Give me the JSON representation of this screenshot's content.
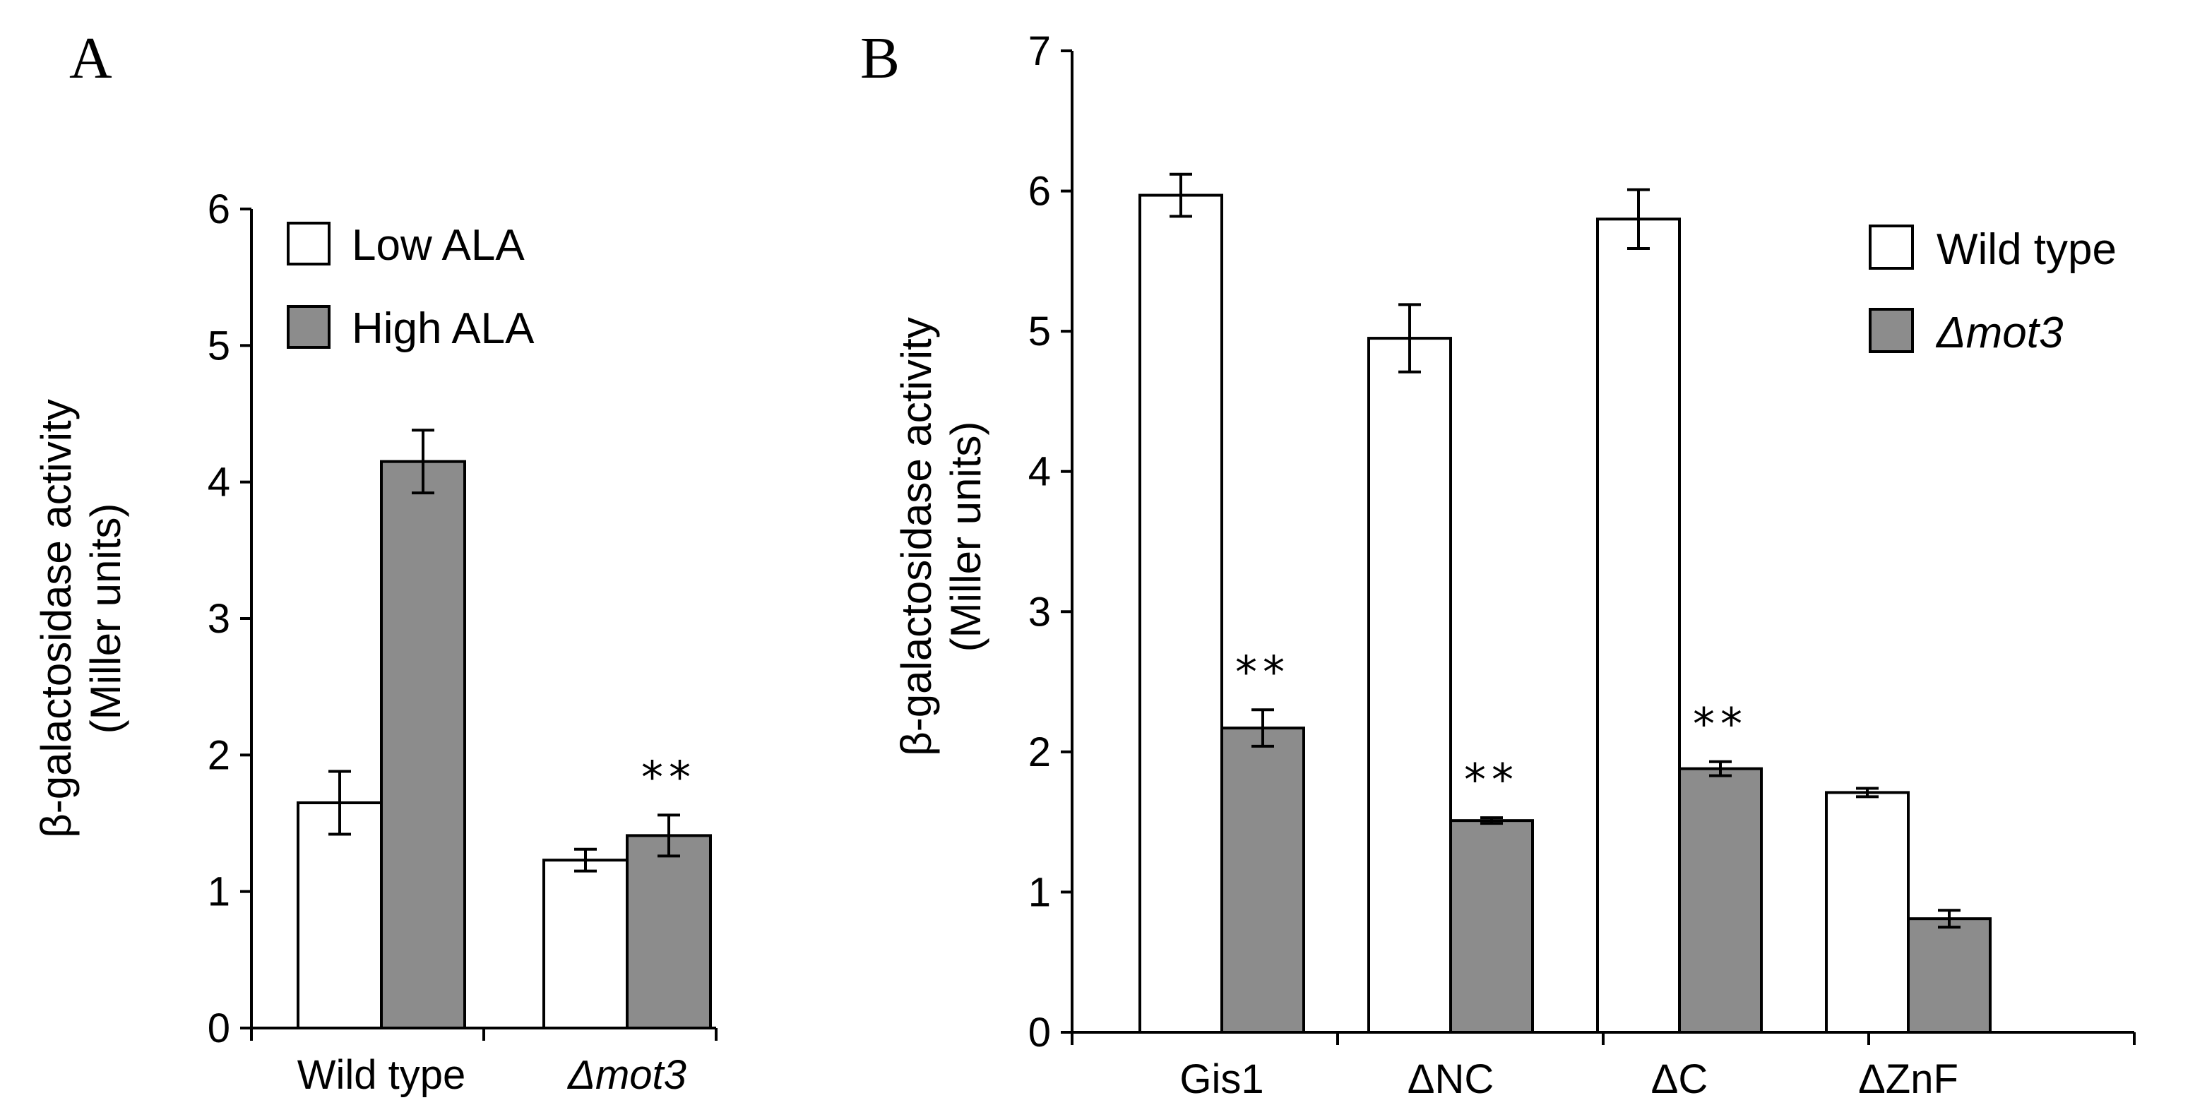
{
  "colors": {
    "series0_fill": "#ffffff",
    "series1_fill": "#8c8c8c",
    "stroke": "#000000"
  },
  "chart_data": [
    {
      "panel": "A",
      "type": "bar",
      "ylabel_line1": "β-galactosidase activity",
      "ylabel_line2": "(Miller units)",
      "ylim": [
        0,
        6
      ],
      "yticks": [
        0,
        1,
        2,
        3,
        4,
        5,
        6
      ],
      "categories": [
        "Wild type",
        "Δmot3"
      ],
      "category_italic": [
        false,
        true
      ],
      "series": [
        {
          "name": "Low ALA",
          "values": [
            1.65,
            1.23
          ],
          "errors": [
            0.23,
            0.08
          ]
        },
        {
          "name": "High ALA",
          "values": [
            4.15,
            1.41
          ],
          "errors": [
            0.23,
            0.15
          ]
        }
      ],
      "legend_position": "top-right",
      "annotations": [
        {
          "text": "**",
          "series": 1,
          "category": 1
        }
      ]
    },
    {
      "panel": "B",
      "type": "bar",
      "ylabel_line1": "β-galactosidase activity",
      "ylabel_line2": "(Miller units)",
      "ylim": [
        0,
        7
      ],
      "yticks": [
        0,
        1,
        2,
        3,
        4,
        5,
        6,
        7
      ],
      "categories": [
        "Gis1",
        "ΔNC",
        "ΔC",
        "ΔZnF"
      ],
      "category_italic": [
        false,
        false,
        false,
        false
      ],
      "series": [
        {
          "name": "Wild type",
          "values": [
            5.97,
            4.95,
            5.8,
            1.71
          ],
          "errors": [
            0.15,
            0.24,
            0.21,
            0.03
          ]
        },
        {
          "name": "Δmot3",
          "values": [
            2.17,
            1.51,
            1.88,
            0.81
          ],
          "errors": [
            0.13,
            0.02,
            0.05,
            0.06
          ]
        }
      ],
      "legend_position": "top-right",
      "legend_italic": [
        false,
        true
      ],
      "annotations": [
        {
          "text": "**",
          "series": 1,
          "category": 0
        },
        {
          "text": "**",
          "series": 1,
          "category": 1
        },
        {
          "text": "**",
          "series": 1,
          "category": 2
        }
      ]
    }
  ]
}
